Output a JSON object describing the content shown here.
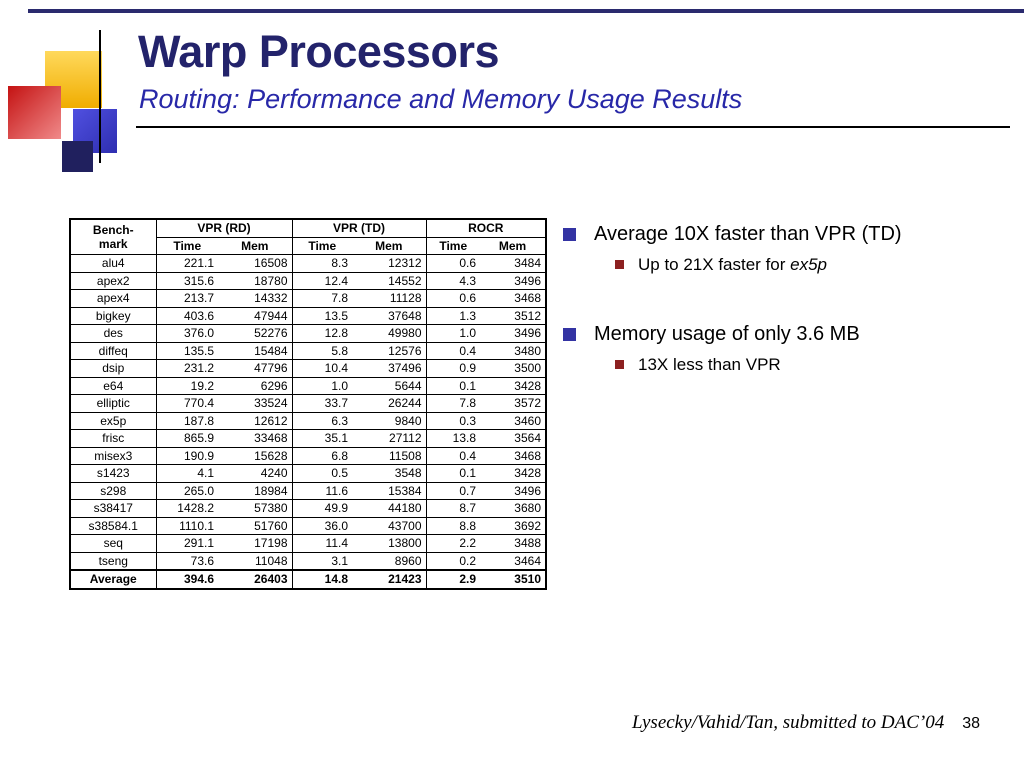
{
  "slide": {
    "title": "Warp Processors",
    "subtitle": "Routing: Performance and Memory Usage Results",
    "footer_text": "Lysecky/Vahid/Tan, submitted to DAC’04",
    "page_number": "38"
  },
  "colors": {
    "title": "#23236B",
    "subtitle": "#2828A8",
    "top_line": "#2A2A6E",
    "bullet_level1": "#3333A3",
    "bullet_level2": "#8C2020",
    "decor_yellow": "#F0AD00",
    "decor_red": "#C41212",
    "decor_blue": "#2E2EB0",
    "decor_navy": "#20205E"
  },
  "table": {
    "header": {
      "benchmark_line1": "Bench-",
      "benchmark_line2": "mark",
      "groups": [
        "VPR (RD)",
        "VPR (TD)",
        "ROCR"
      ],
      "sub": [
        "Time",
        "Mem",
        "Time",
        "Mem",
        "Time",
        "Mem"
      ]
    },
    "rows": [
      [
        "alu4",
        "221.1",
        "16508",
        "8.3",
        "12312",
        "0.6",
        "3484"
      ],
      [
        "apex2",
        "315.6",
        "18780",
        "12.4",
        "14552",
        "4.3",
        "3496"
      ],
      [
        "apex4",
        "213.7",
        "14332",
        "7.8",
        "11128",
        "0.6",
        "3468"
      ],
      [
        "bigkey",
        "403.6",
        "47944",
        "13.5",
        "37648",
        "1.3",
        "3512"
      ],
      [
        "des",
        "376.0",
        "52276",
        "12.8",
        "49980",
        "1.0",
        "3496"
      ],
      [
        "diffeq",
        "135.5",
        "15484",
        "5.8",
        "12576",
        "0.4",
        "3480"
      ],
      [
        "dsip",
        "231.2",
        "47796",
        "10.4",
        "37496",
        "0.9",
        "3500"
      ],
      [
        "e64",
        "19.2",
        "6296",
        "1.0",
        "5644",
        "0.1",
        "3428"
      ],
      [
        "elliptic",
        "770.4",
        "33524",
        "33.7",
        "26244",
        "7.8",
        "3572"
      ],
      [
        "ex5p",
        "187.8",
        "12612",
        "6.3",
        "9840",
        "0.3",
        "3460"
      ],
      [
        "frisc",
        "865.9",
        "33468",
        "35.1",
        "27112",
        "13.8",
        "3564"
      ],
      [
        "misex3",
        "190.9",
        "15628",
        "6.8",
        "11508",
        "0.4",
        "3468"
      ],
      [
        "s1423",
        "4.1",
        "4240",
        "0.5",
        "3548",
        "0.1",
        "3428"
      ],
      [
        "s298",
        "265.0",
        "18984",
        "11.6",
        "15384",
        "0.7",
        "3496"
      ],
      [
        "s38417",
        "1428.2",
        "57380",
        "49.9",
        "44180",
        "8.7",
        "3680"
      ],
      [
        "s38584.1",
        "1110.1",
        "51760",
        "36.0",
        "43700",
        "8.8",
        "3692"
      ],
      [
        "seq",
        "291.1",
        "17198",
        "11.4",
        "13800",
        "2.2",
        "3488"
      ],
      [
        "tseng",
        "73.6",
        "11048",
        "3.1",
        "8960",
        "0.2",
        "3464"
      ]
    ],
    "average_row": [
      "Average",
      "394.6",
      "26403",
      "14.8",
      "21423",
      "2.9",
      "3510"
    ]
  },
  "bullets": [
    {
      "text": "Average 10X faster than VPR (TD)",
      "sub_text": "Up to 21X faster for ",
      "sub_emphasis": "ex5p"
    },
    {
      "text": "Memory usage of only 3.6 MB",
      "sub_text": "13X less than VPR",
      "sub_emphasis": ""
    }
  ]
}
